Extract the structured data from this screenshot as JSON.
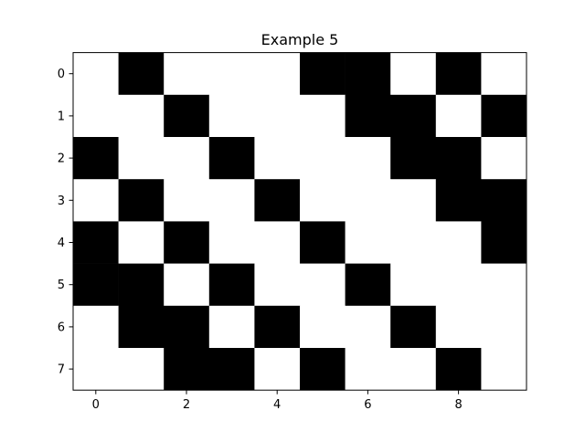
{
  "chart_data": {
    "type": "heatmap",
    "title": "Example 5",
    "xlabel": "",
    "ylabel": "",
    "colormap": "gray_r",
    "colors": {
      "on": "#000000",
      "off": "#ffffff"
    },
    "grid": false,
    "xlim": [
      -0.5,
      9.5
    ],
    "ylim": [
      7.5,
      -0.5
    ],
    "x_ticks": [
      0,
      2,
      4,
      6,
      8
    ],
    "y_ticks": [
      0,
      1,
      2,
      3,
      4,
      5,
      6,
      7
    ],
    "n_rows": 8,
    "n_cols": 10,
    "matrix": [
      [
        0,
        1,
        0,
        0,
        0,
        1,
        1,
        0,
        1,
        0
      ],
      [
        0,
        0,
        1,
        0,
        0,
        0,
        1,
        1,
        0,
        1
      ],
      [
        1,
        0,
        0,
        1,
        0,
        0,
        0,
        1,
        1,
        0
      ],
      [
        0,
        1,
        0,
        0,
        1,
        0,
        0,
        0,
        1,
        1
      ],
      [
        1,
        0,
        1,
        0,
        0,
        1,
        0,
        0,
        0,
        1
      ],
      [
        1,
        1,
        0,
        1,
        0,
        0,
        1,
        0,
        0,
        0
      ],
      [
        0,
        1,
        1,
        0,
        1,
        0,
        0,
        1,
        0,
        0
      ],
      [
        0,
        0,
        1,
        1,
        0,
        1,
        0,
        0,
        1,
        0
      ]
    ]
  }
}
